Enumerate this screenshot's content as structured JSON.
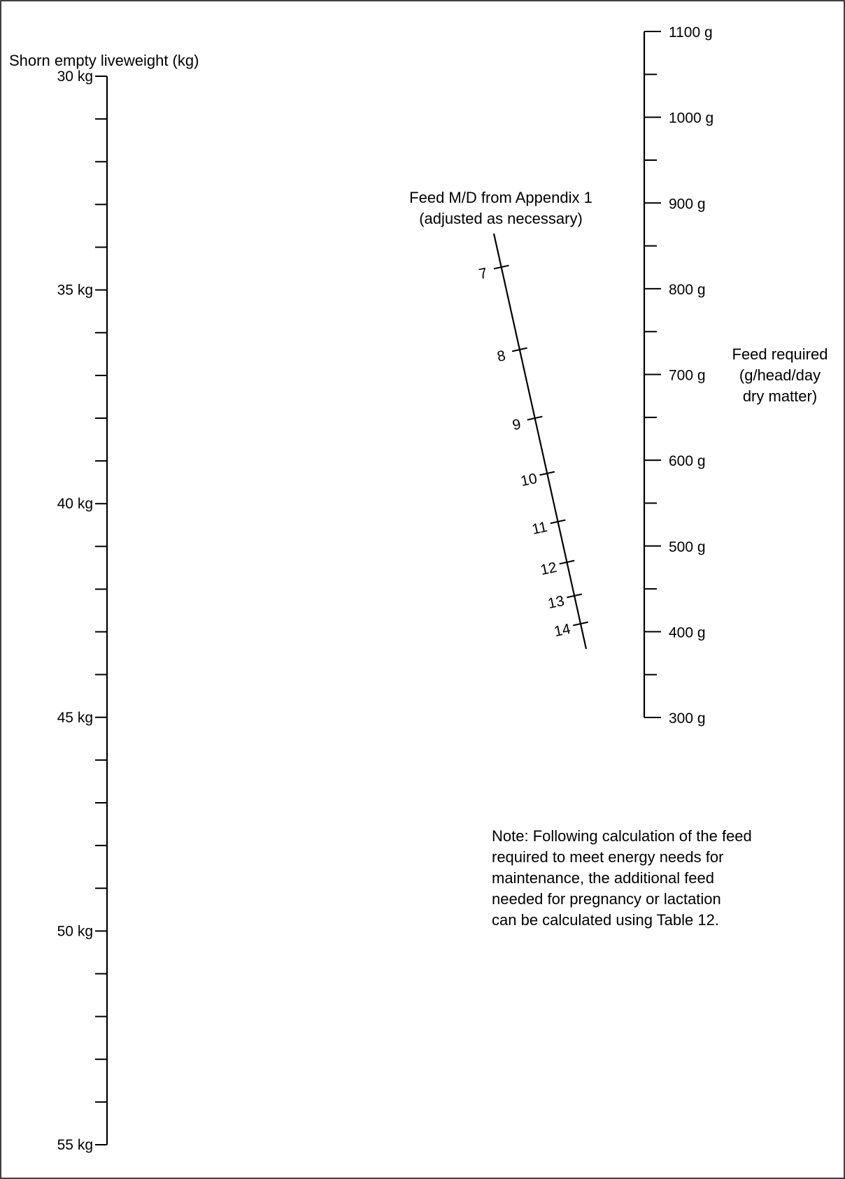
{
  "left_scale": {
    "title": "Shorn empty liveweight (kg)",
    "min": 30,
    "max": 55,
    "step": 1,
    "labeled_values": [
      30,
      35,
      40,
      45,
      50,
      55
    ],
    "unit": "kg",
    "labels": [
      "30 kg",
      "35 kg",
      "40 kg",
      "45 kg",
      "50 kg",
      "55 kg"
    ]
  },
  "middle_scale": {
    "title_line1": "Feed M/D from Appendix 1",
    "title_line2": "(adjusted as necessary)",
    "values": [
      7,
      8,
      9,
      10,
      11,
      12,
      13,
      14
    ],
    "labels": [
      "7",
      "8",
      "9",
      "10",
      "11",
      "12",
      "13",
      "14"
    ]
  },
  "right_scale": {
    "title_line1": "Feed required",
    "title_line2": "(g/head/day",
    "title_line3": "dry matter)",
    "min": 300,
    "max": 1100,
    "step": 50,
    "labeled_values": [
      300,
      400,
      500,
      600,
      700,
      800,
      900,
      1000,
      1100
    ],
    "unit": "g",
    "labels": [
      "300 g",
      "400 g",
      "500 g",
      "600 g",
      "700 g",
      "800 g",
      "900 g",
      "1000 g",
      "1100 g"
    ]
  },
  "note": {
    "line1": "Note: Following calculation of the feed",
    "line2": "required to meet energy needs for",
    "line3": "maintenance, the additional feed",
    "line4": "needed for pregnancy or lactation",
    "line5": "can be calculated using Table 12."
  },
  "colors": {
    "ink": "#000000",
    "background": "#ffffff"
  }
}
